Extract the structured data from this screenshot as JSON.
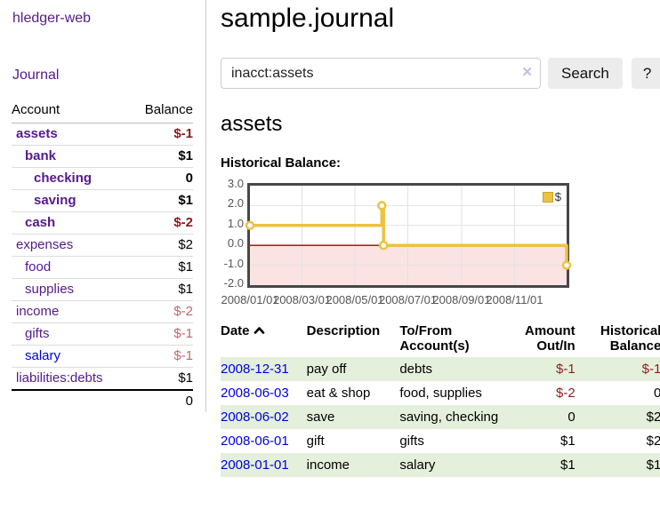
{
  "sidebar": {
    "brand": "hledger-web",
    "journal_label": "Journal",
    "accounts_table": {
      "headers": [
        "Account",
        "Balance"
      ],
      "rows": [
        {
          "account": "assets",
          "depth": 1,
          "bold": true,
          "balance": "$-1",
          "neg": "strong"
        },
        {
          "account": "bank",
          "depth": 2,
          "bold": true,
          "balance": "$1"
        },
        {
          "account": "checking",
          "depth": 3,
          "bold": true,
          "balance": "0"
        },
        {
          "account": "saving",
          "depth": 3,
          "bold": true,
          "balance": "$1"
        },
        {
          "account": "cash",
          "depth": 2,
          "bold": true,
          "balance": "$-2",
          "neg": "strong"
        },
        {
          "account": "expenses",
          "depth": 1,
          "bold": false,
          "balance": "$2"
        },
        {
          "account": "food",
          "depth": 2,
          "bold": false,
          "balance": "$1"
        },
        {
          "account": "supplies",
          "depth": 2,
          "bold": false,
          "balance": "$1"
        },
        {
          "account": "income",
          "depth": 1,
          "bold": false,
          "balance": "$-2",
          "neg": "soft"
        },
        {
          "account": "gifts",
          "depth": 2,
          "bold": false,
          "balance": "$-1",
          "neg": "soft"
        },
        {
          "account": "salary",
          "depth": 2,
          "bold": false,
          "balance": "$-1",
          "neg": "soft",
          "link_color": "blue"
        },
        {
          "account": "liabilities:debts",
          "depth": 1,
          "bold": false,
          "balance": "$1"
        }
      ],
      "total": "0"
    }
  },
  "main": {
    "title": "sample.journal",
    "search": {
      "value": "inacct:assets",
      "clear_icon": "✕",
      "button_label": "Search",
      "help_label": "?"
    },
    "section_title": "assets",
    "chart_label": "Historical Balance:"
  },
  "chart_data": {
    "type": "line",
    "title": "Historical Balance",
    "step": true,
    "series": [
      {
        "name": "$",
        "color": "#edc240",
        "points": [
          {
            "x": "2008-01-01",
            "y": 1
          },
          {
            "x": "2008-06-01",
            "y": 2
          },
          {
            "x": "2008-06-03",
            "y": 0
          },
          {
            "x": "2008-12-31",
            "y": -1
          }
        ]
      }
    ],
    "x_range": [
      "2008-01-01",
      "2008-12-31"
    ],
    "ylim": [
      -2,
      3
    ],
    "y_ticks": [
      {
        "v": 3,
        "label": "3.0"
      },
      {
        "v": 2,
        "label": "2.0"
      },
      {
        "v": 1,
        "label": "1.0"
      },
      {
        "v": 0,
        "label": "0.0"
      },
      {
        "v": -1,
        "label": "-1.0"
      },
      {
        "v": -2,
        "label": "-2.0"
      }
    ],
    "x_ticks": [
      {
        "d": "2008-01-01",
        "label": "2008/01/01"
      },
      {
        "d": "2008-03-01",
        "label": "2008/03/01"
      },
      {
        "d": "2008-05-01",
        "label": "2008/05/01"
      },
      {
        "d": "2008-07-01",
        "label": "2008/07/01"
      },
      {
        "d": "2008-09-01",
        "label": "2008/09/01"
      },
      {
        "d": "2008-11-01",
        "label": "2008/11/01"
      }
    ],
    "grid": true,
    "grid_color": "#e2e2e2",
    "negative_region_color": "#fce3e3",
    "zero_line_color": "#a00000",
    "legend": {
      "position": "top-right",
      "entries": [
        "$"
      ]
    }
  },
  "register_table": {
    "headers": {
      "date": "Date",
      "description": "Description",
      "accounts": "To/From Account(s)",
      "amount": "Amount Out/In",
      "balance": "Historical Balance"
    },
    "rows": [
      {
        "date": "2008-12-31",
        "description": "pay off",
        "accounts": "debts",
        "amount": "$-1",
        "amount_neg": true,
        "balance": "$-1",
        "balance_neg": true
      },
      {
        "date": "2008-06-03",
        "description": "eat & shop",
        "accounts": "food, supplies",
        "amount": "$-2",
        "amount_neg": true,
        "balance": "0",
        "balance_neg": false
      },
      {
        "date": "2008-06-02",
        "description": "save",
        "accounts": "saving, checking",
        "amount": "0",
        "amount_neg": false,
        "balance": "$2",
        "balance_neg": false
      },
      {
        "date": "2008-06-01",
        "description": "gift",
        "accounts": "gifts",
        "amount": "$1",
        "amount_neg": false,
        "balance": "$2",
        "balance_neg": false
      },
      {
        "date": "2008-01-01",
        "description": "income",
        "accounts": "salary",
        "amount": "$1",
        "amount_neg": false,
        "balance": "$1",
        "balance_neg": false
      }
    ]
  }
}
